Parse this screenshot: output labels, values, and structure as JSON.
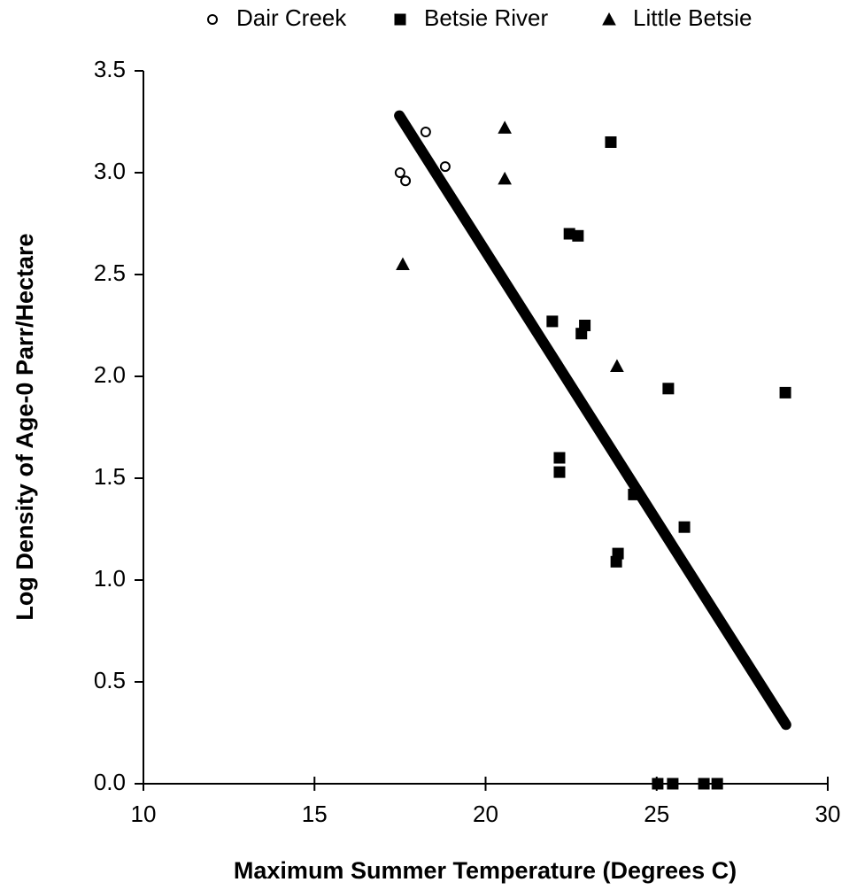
{
  "chart_data": {
    "type": "scatter",
    "xlabel": "Maximum Summer Temperature (Degrees C)",
    "ylabel": "Log Density of Age-0 Parr/Hectare",
    "xlim": [
      10,
      30
    ],
    "xticks": [
      10,
      15,
      20,
      25,
      30
    ],
    "ylim": [
      0,
      3.5
    ],
    "yticks": [
      {
        "value": 0,
        "label": "0.0"
      },
      0.5,
      {
        "value": 1,
        "label": "1.0"
      },
      1.5,
      {
        "value": 2,
        "label": "2.0"
      },
      2.5,
      {
        "value": 3,
        "label": "3.0"
      },
      3.5
    ],
    "legend": "top",
    "series": [
      {
        "name": "Dair Creek",
        "color": "#000000",
        "marker": "circle",
        "filled": false,
        "x": [
          17.5,
          17.66,
          18.25,
          18.82
        ],
        "values": [
          3.0,
          2.96,
          3.2,
          3.03
        ]
      },
      {
        "name": "Betsie River",
        "color": "#000000",
        "marker": "square",
        "filled": true,
        "x": [
          23.66,
          22.45,
          22.7,
          21.95,
          22.9,
          22.8,
          25.34,
          28.76,
          22.16,
          22.16,
          24.33,
          25.81,
          23.87,
          23.82,
          25.03,
          25.47,
          26.38,
          26.77
        ],
        "values": [
          3.15,
          2.7,
          2.69,
          2.27,
          2.25,
          2.21,
          1.94,
          1.92,
          1.6,
          1.53,
          1.42,
          1.26,
          1.13,
          1.09,
          0,
          0,
          0,
          0
        ]
      },
      {
        "name": "Little Betsie",
        "color": "#000000",
        "marker": "triangle",
        "filled": true,
        "x": [
          20.56,
          20.56,
          17.58,
          23.84
        ],
        "values": [
          3.22,
          2.97,
          2.55,
          2.05
        ]
      }
    ],
    "trendline": {
      "color": "#000000",
      "x": [
        17.48,
        28.78
      ],
      "values": [
        3.28,
        0.29
      ]
    }
  }
}
